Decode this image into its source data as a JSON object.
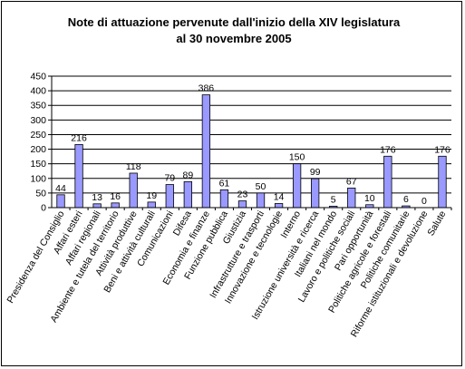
{
  "chart_data": {
    "type": "bar",
    "title_lines": [
      "Note di attuazione pervenute dall'inizio della XIV legislatura",
      "al 30 novembre 2005"
    ],
    "categories": [
      "Presidenza del Consiglio",
      "Affari esteri",
      "Affari regionali",
      "Ambiente e tutela del territorio",
      "Attività produttive",
      "Beni e attività culturali",
      "Comunicazioni",
      "Difesa",
      "Economia e finanze",
      "Funzione pubblica",
      "Giustizia",
      "Infrastrutture e trasporti",
      "Innovazione e tecnologie",
      "Interno",
      "Istruzione università e ricerca",
      "Italiani nel mondo",
      "Lavoro e politiche sociali",
      "Pari opportunità",
      "Politiche agricole e forestali",
      "Politiche comunitarie",
      "Riforme istituzionali e devoluzione",
      "Salute"
    ],
    "values": [
      44,
      216,
      13,
      16,
      118,
      19,
      79,
      89,
      386,
      61,
      23,
      50,
      14,
      150,
      99,
      5,
      67,
      10,
      176,
      6,
      0,
      176
    ],
    "ylim": [
      0,
      450
    ],
    "yticks": [
      0,
      50,
      100,
      150,
      200,
      250,
      300,
      350,
      400,
      450
    ],
    "grid": true,
    "legend": "none",
    "colors": {
      "bar": "#9999ff",
      "bar_stroke": "#000000",
      "grid": "#000000"
    }
  }
}
